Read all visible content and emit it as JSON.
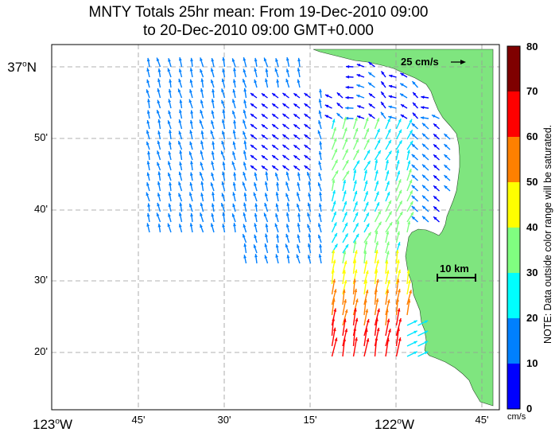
{
  "title_line1": "MNTY Totals 25hr mean: From 19-Dec-2010 09:00",
  "title_line2": "to 20-Dec-2010 09:00 GMT+0.000",
  "lat_labels": {
    "l37": "37",
    "deg_n": "o",
    "n": "N",
    "l50": "50'",
    "l40": "40'",
    "l30": "30'",
    "l20": "20'"
  },
  "lon_labels": {
    "w123": "123",
    "deg_w1": "o",
    "w1": "W",
    "l45": "45'",
    "l30": "30'",
    "l15": "15'",
    "w122": "122",
    "deg_w2": "o",
    "w2": "W",
    "l45b": "45'"
  },
  "reference_vector_label": "25 cm/s",
  "scale_bar_label": "10 km",
  "colorbar": {
    "ticks": [
      "80",
      "70",
      "60",
      "50",
      "40",
      "30",
      "20",
      "10",
      "0"
    ],
    "unit": "cm/s",
    "colors": [
      "#7f0000",
      "#ff0000",
      "#ff8000",
      "#ffff00",
      "#80ff80",
      "#00ffff",
      "#0080ff",
      "#0000ff"
    ],
    "note": "NOTE: Data outside color range will be saturated."
  },
  "colors": {
    "land": "#7fe57f",
    "grid": "#999999"
  }
}
